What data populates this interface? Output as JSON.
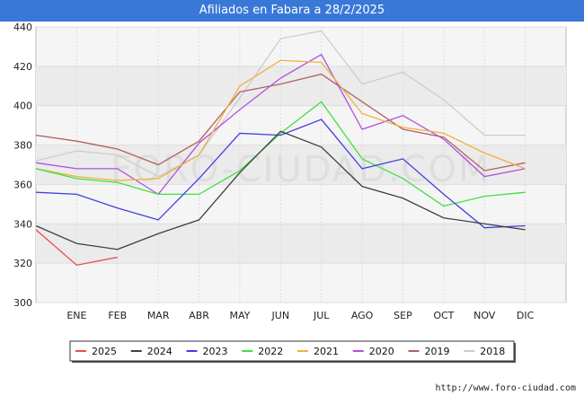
{
  "header": {
    "title": "Afiliados en Fabara a 28/2/2025"
  },
  "footer": {
    "source": "http://www.foro-ciudad.com"
  },
  "watermark": "FORO-CIUDAD.COM",
  "chart_data": {
    "type": "line",
    "categories": [
      "",
      "ENE",
      "FEB",
      "MAR",
      "ABR",
      "MAY",
      "JUN",
      "JUL",
      "AGO",
      "SEP",
      "OCT",
      "NOV",
      "DIC"
    ],
    "ylim": [
      300,
      440
    ],
    "yticks": [
      300,
      320,
      340,
      360,
      380,
      400,
      420,
      440
    ],
    "grid": true,
    "legend_position": "bottom",
    "series": [
      {
        "name": "2025",
        "color": "#e05050",
        "values": [
          337,
          319,
          323,
          null,
          null,
          null,
          null,
          null,
          null,
          null,
          null,
          null,
          null
        ]
      },
      {
        "name": "2024",
        "color": "#404040",
        "values": [
          339,
          330,
          327,
          335,
          342,
          366,
          387,
          379,
          359,
          353,
          343,
          340,
          337
        ]
      },
      {
        "name": "2023",
        "color": "#4040e0",
        "values": [
          356,
          355,
          348,
          342,
          363,
          386,
          385,
          393,
          368,
          373,
          355,
          338,
          339
        ]
      },
      {
        "name": "2022",
        "color": "#40e040",
        "values": [
          368,
          363,
          361,
          355,
          355,
          367,
          386,
          402,
          373,
          363,
          349,
          354,
          356
        ]
      },
      {
        "name": "2021",
        "color": "#f0b040",
        "values": [
          368,
          364,
          362,
          363,
          375,
          410,
          423,
          422,
          396,
          389,
          386,
          376,
          368
        ]
      },
      {
        "name": "2020",
        "color": "#b050e0",
        "values": [
          371,
          368,
          368,
          355,
          381,
          398,
          414,
          426,
          388,
          395,
          383,
          364,
          368
        ]
      },
      {
        "name": "2019",
        "color": "#b06060",
        "values": [
          385,
          382,
          378,
          370,
          382,
          407,
          411,
          416,
          402,
          388,
          384,
          367,
          371
        ]
      },
      {
        "name": "2018",
        "color": "#cccccc",
        "values": [
          372,
          377,
          375,
          364,
          375,
          404,
          434,
          438,
          411,
          417,
          403,
          385,
          385
        ]
      }
    ]
  }
}
